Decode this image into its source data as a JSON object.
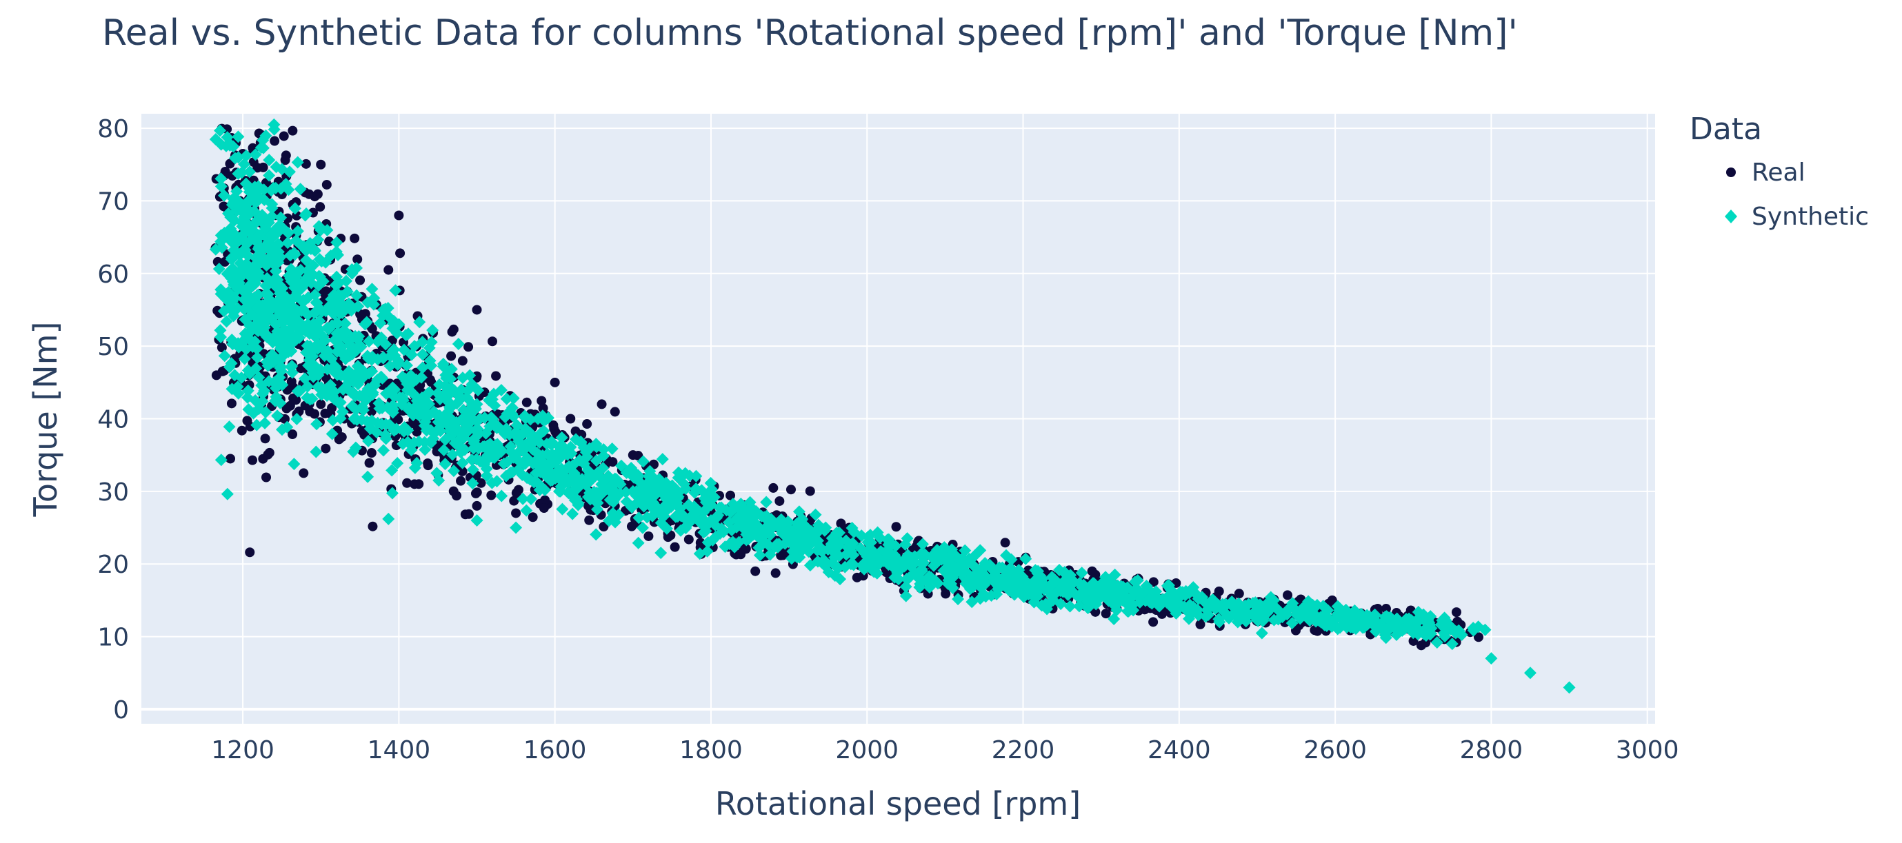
{
  "chart_data": {
    "type": "scatter",
    "title": "Real vs. Synthetic Data for columns 'Rotational speed [rpm]' and 'Torque [Nm]'",
    "xlabel": "Rotational speed [rpm]",
    "ylabel": "Torque [Nm]",
    "xlim": [
      1070,
      3010
    ],
    "ylim": [
      -2,
      82
    ],
    "xticks": [
      1200,
      1400,
      1600,
      1800,
      2000,
      2200,
      2400,
      2600,
      2800,
      3000
    ],
    "yticks": [
      0,
      10,
      20,
      30,
      40,
      50,
      60,
      70,
      80
    ],
    "grid": true,
    "legend": {
      "title": "Data",
      "position": "top-right"
    },
    "series": [
      {
        "name": "Real",
        "color": "#0d0a3a",
        "marker": "circle",
        "x": [
          1165,
          1185,
          1200,
          1210,
          1240,
          1260,
          1300,
          1330,
          1420,
          1500,
          1550,
          1600,
          1620,
          1660,
          1700,
          1750,
          1800,
          1850,
          1900,
          1950,
          2000,
          2050,
          2100,
          2150,
          2200,
          2250,
          2300,
          2350,
          2400,
          2450,
          2500,
          2550,
          2600,
          2650,
          2700,
          1300,
          1400,
          1500,
          1600,
          1700
        ],
        "y": [
          63.5,
          68,
          76.5,
          62,
          54,
          50,
          42,
          40,
          31,
          28,
          27,
          33,
          40,
          42,
          31,
          26,
          28,
          25,
          24,
          23,
          21,
          20,
          19,
          18,
          16.5,
          16,
          15.5,
          15,
          14.5,
          14,
          13.5,
          13,
          12.5,
          12,
          12.5,
          75,
          68,
          55,
          45,
          35
        ]
      },
      {
        "name": "Synthetic",
        "color": "#00d9c0",
        "marker": "diamond",
        "x": [
          1200,
          1210,
          1220,
          1240,
          1260,
          1280,
          1300,
          1320,
          1340,
          1360,
          1380,
          1400,
          1420,
          1440,
          1460,
          1480,
          1500,
          1520,
          1540,
          1560,
          1580,
          1600,
          1650,
          1700,
          1750,
          1800,
          1850,
          1900,
          1950,
          2000,
          2100,
          2200,
          2300,
          2400,
          2500,
          2600,
          2650,
          2700,
          2750,
          2800,
          2850,
          2900,
          1240,
          1360,
          1500,
          1550
        ],
        "y": [
          60,
          66,
          72,
          80.5,
          74,
          68,
          66,
          63,
          60,
          56,
          55,
          53,
          50,
          48,
          46,
          44,
          42,
          40,
          38,
          36,
          35,
          34,
          32,
          30,
          28,
          26,
          25,
          24,
          22,
          21,
          19,
          17,
          15.5,
          14.5,
          13.5,
          12.5,
          11.5,
          10.5,
          9,
          7,
          5,
          3,
          45,
          32,
          26,
          25
        ]
      }
    ]
  }
}
